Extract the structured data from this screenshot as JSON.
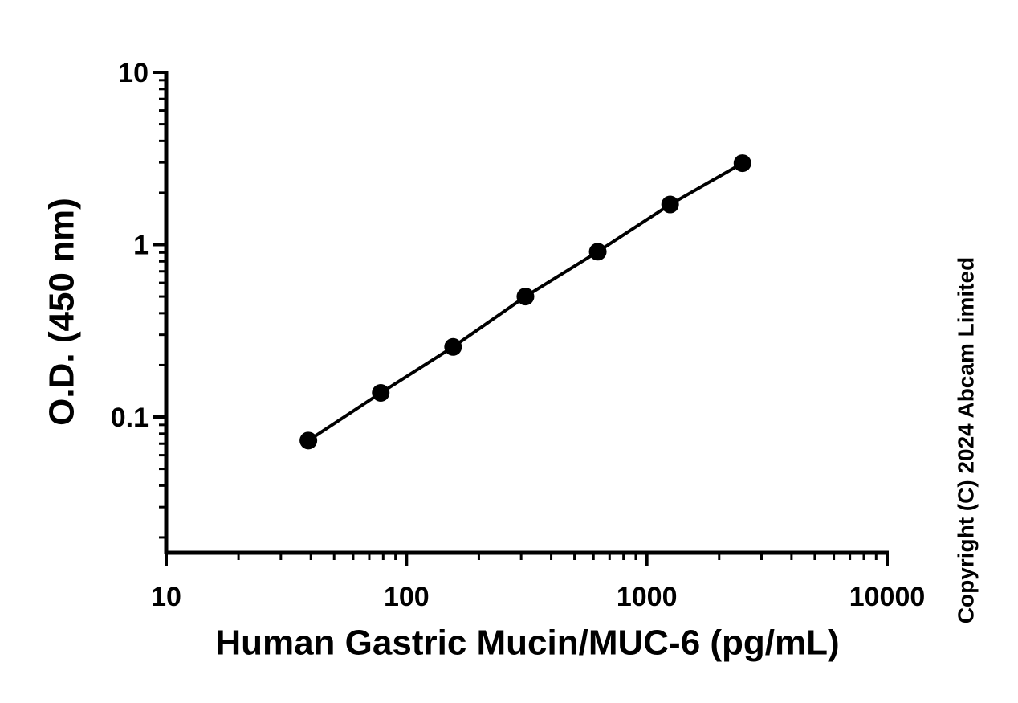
{
  "chart_data": {
    "type": "scatter-line",
    "xlabel": "Human Gastric Mucin/MUC-6 (pg/mL)",
    "ylabel": "O.D. (450 nm)",
    "copyright": "Copyright (C) 2024 Abcam Limited",
    "x": [
      39.06,
      78.13,
      156.25,
      312.5,
      625,
      1250,
      2500
    ],
    "series": [
      {
        "name": "O.D.",
        "color": "#000000",
        "values": [
          0.073,
          0.138,
          0.255,
          0.5,
          0.91,
          1.71,
          2.97
        ]
      }
    ],
    "xscale": "log",
    "yscale": "log",
    "xlim": [
      10,
      10000
    ],
    "ylim": [
      0.0163,
      10
    ],
    "xticks": [
      10,
      100,
      1000,
      10000
    ],
    "yticks": [
      0.1,
      1,
      10
    ],
    "grid": false
  }
}
